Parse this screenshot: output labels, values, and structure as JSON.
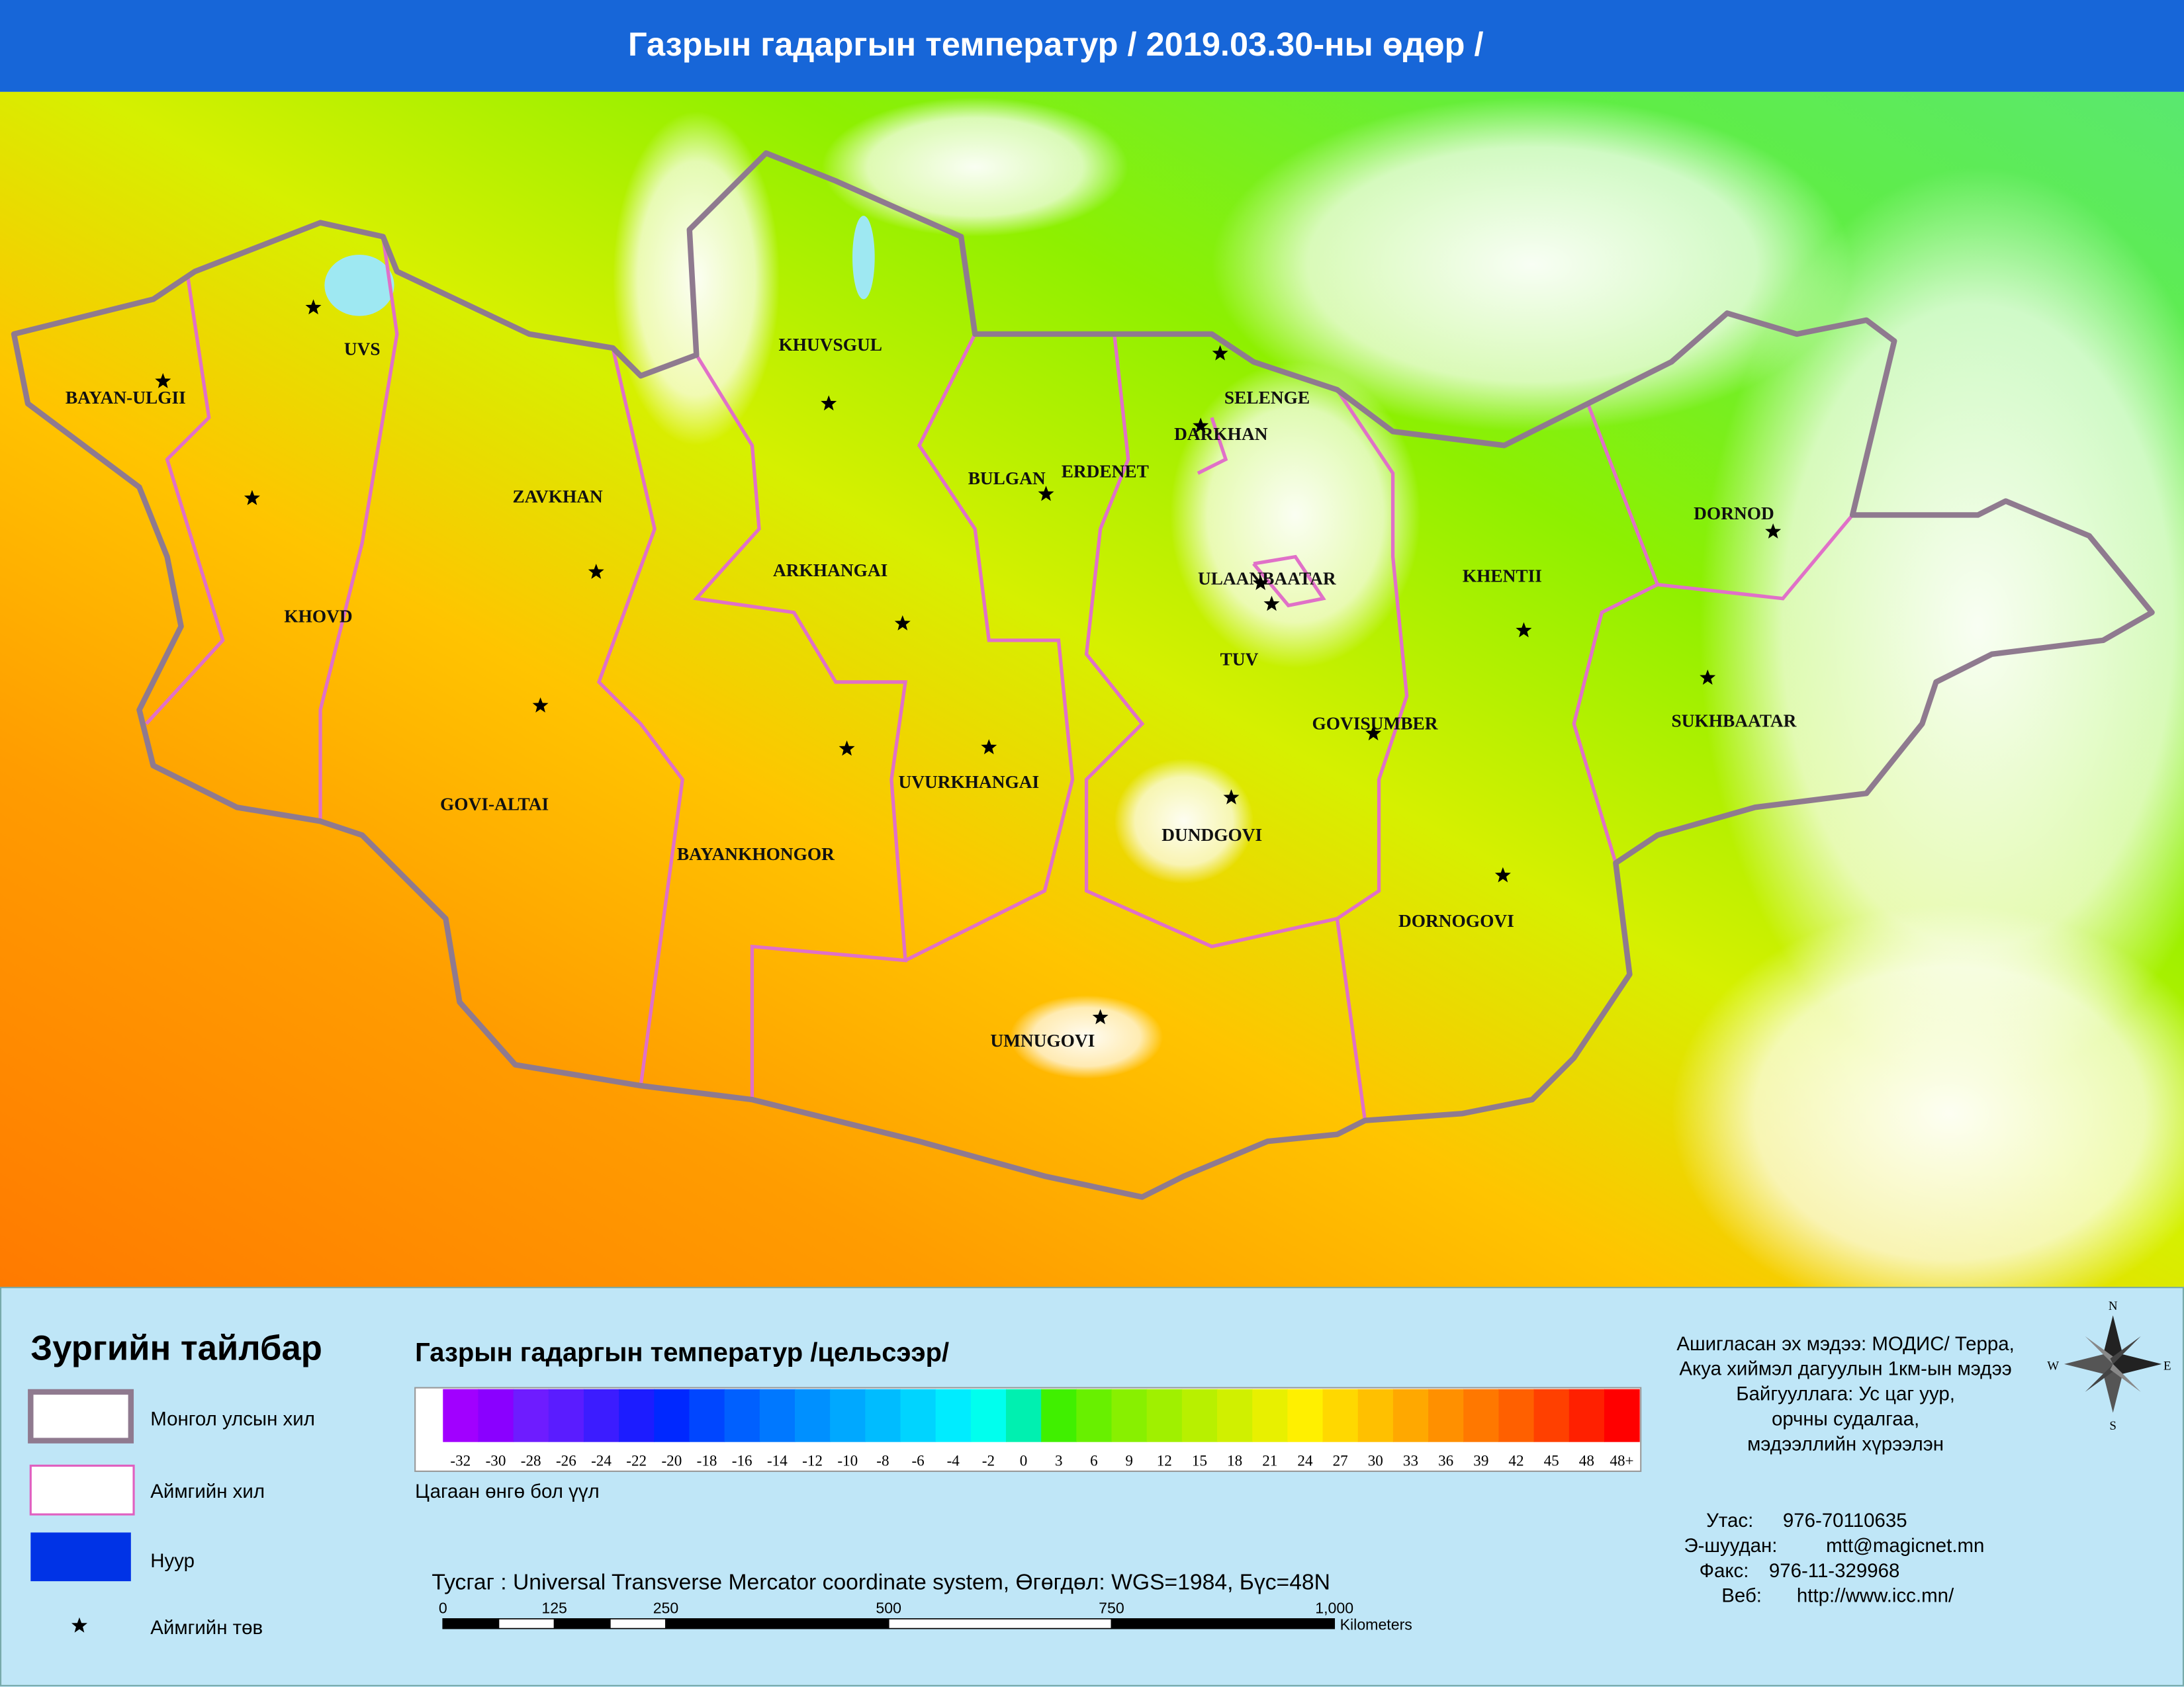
{
  "header": {
    "title": "Газрын гадаргын температур / 2019.03.30-ны өдөр /"
  },
  "map": {
    "labels": [
      "BAYAN-ULGII",
      "UVS",
      "KHUVSGUL",
      "SELENGE",
      "DARKHAN",
      "ZAVKHAN",
      "BULGAN",
      "ERDENET",
      "ARKHANGAI",
      "KHOVD",
      "ULAANBAATAR",
      "KHENTII",
      "DORNOD",
      "TUV",
      "SUKHBAATAR",
      "GOVISUMBER",
      "GOVI-ALTAI",
      "UVURKHANGAI",
      "DUNDGOVI",
      "BAYANKHONGOR",
      "DORNOGOVI",
      "UMNUGOVI"
    ]
  },
  "legend": {
    "title": "Зургийн тайлбар",
    "items": [
      "Монгол улсын хил",
      "Аймгийн хил",
      "Нуур",
      "Аймгийн төв"
    ]
  },
  "colorbar": {
    "title": "Газрын гадаргын температур /цельсээр/",
    "labels": [
      "-32",
      "-30",
      "-28",
      "-26",
      "-24",
      "-22",
      "-20",
      "-18",
      "-16",
      "-14",
      "-12",
      "-10",
      "-8",
      "-6",
      "-4",
      "-2",
      "0",
      "3",
      "6",
      "9",
      "12",
      "15",
      "18",
      "21",
      "24",
      "27",
      "30",
      "33",
      "36",
      "39",
      "42",
      "45",
      "48",
      "48+"
    ],
    "colors": [
      "#a100ff",
      "#8a00ff",
      "#6e1cff",
      "#5a1cff",
      "#3c1cff",
      "#1c1cff",
      "#0028ff",
      "#0046ff",
      "#0060ff",
      "#0078ff",
      "#0090ff",
      "#00a8ff",
      "#00bcff",
      "#00d4ff",
      "#00ecff",
      "#00ffee",
      "#00f0b0",
      "#40f000",
      "#68f000",
      "#88f000",
      "#a0f000",
      "#b8f000",
      "#d0f000",
      "#e8f000",
      "#fff000",
      "#ffd800",
      "#ffc000",
      "#ffa800",
      "#ff9000",
      "#ff7800",
      "#ff6000",
      "#ff4000",
      "#ff2000",
      "#ff0000"
    ],
    "note": "Цагаан өнгө бол үүл"
  },
  "projection": "Тусгаг : Universal Transverse Mercator coordinate system, Өгөгдөл: WGS=1984, Бүс=48N",
  "scalebar": {
    "labels": [
      "0",
      "125",
      "250",
      "500",
      "750",
      "1,000"
    ],
    "unit": "Kilometers"
  },
  "source": [
    "Ашигласан эх мэдээ: МОДИС/ Терра,",
    "Акуа хиймэл дагуулын 1км-ын мэдээ",
    "Байгууллага: Ус цаг уур,",
    "орчны судалгаа,",
    "мэдээллийн хүрээлэн"
  ],
  "contacts": [
    {
      "key": "Утас:",
      "value": "976-70110635"
    },
    {
      "key": "Э-шуудан:",
      "value": "mtt@magicnet.mn"
    },
    {
      "key": "Факс:",
      "value": "976-11-329968"
    },
    {
      "key": "Веб:",
      "value": "http://www.icc.mn/"
    }
  ],
  "compass": [
    "N",
    "E",
    "S",
    "W"
  ]
}
